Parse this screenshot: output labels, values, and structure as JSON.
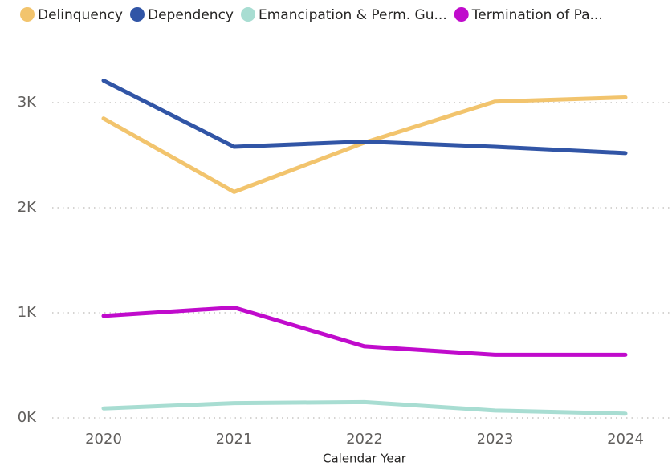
{
  "chart_data": {
    "type": "line",
    "x_label": "Calendar Year",
    "categories": [
      "2020",
      "2021",
      "2022",
      "2023",
      "2024"
    ],
    "series": [
      {
        "name": "Delinquency",
        "color": "#f2c46d",
        "values": [
          2850,
          2150,
          2620,
          3010,
          3050
        ]
      },
      {
        "name": "Dependency",
        "color": "#3155a6",
        "values": [
          3210,
          2580,
          2630,
          2580,
          2520
        ]
      },
      {
        "name": "Emancipation & Perm. Gu...",
        "color": "#a8ddd2",
        "values": [
          90,
          140,
          150,
          70,
          40
        ]
      },
      {
        "name": "Termination of Pa...",
        "color": "#c00bcc",
        "values": [
          970,
          1050,
          680,
          600,
          600
        ]
      }
    ],
    "ylim": [
      0,
      3500
    ],
    "yticks": [
      {
        "value": 0,
        "label": "0K"
      },
      {
        "value": 1000,
        "label": "1K"
      },
      {
        "value": 2000,
        "label": "2K"
      },
      {
        "value": 3000,
        "label": "3K"
      }
    ],
    "grid": true,
    "legend": "top-left"
  }
}
